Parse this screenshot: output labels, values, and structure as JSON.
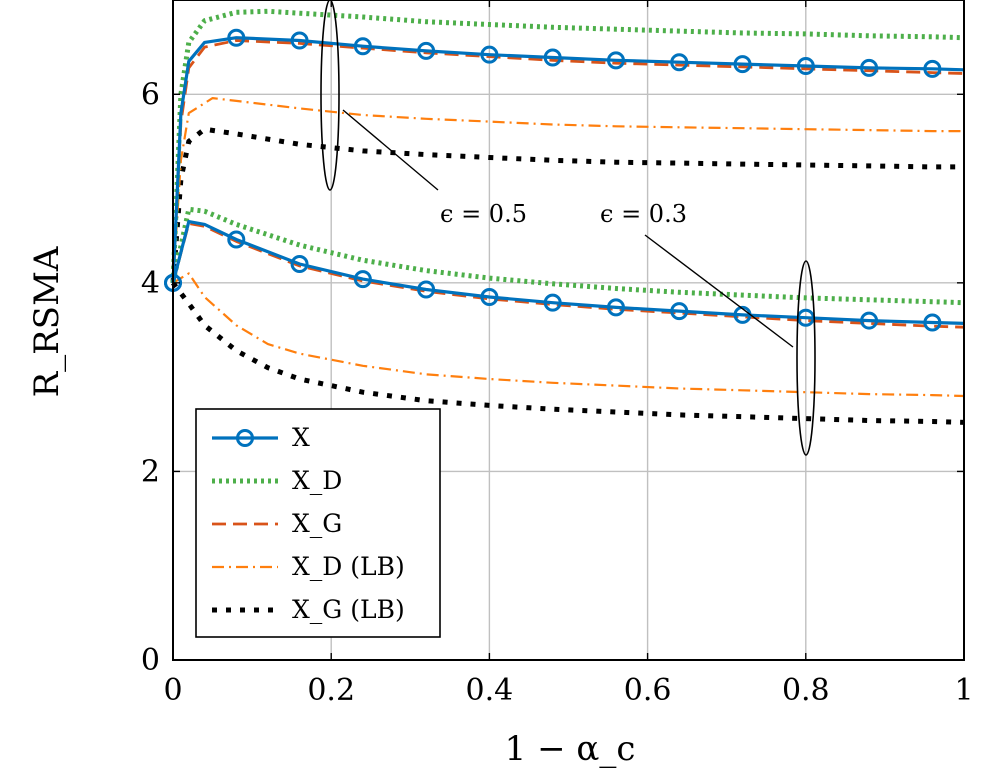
{
  "chart_data": {
    "type": "line",
    "xlabel": "1 − α_c",
    "ylabel": "R_RSMA",
    "xlim": [
      0,
      1
    ],
    "ylim": [
      0,
      7
    ],
    "x_ticks": [
      "0",
      "0.2",
      "0.4",
      "0.6",
      "0.8",
      "1"
    ],
    "y_ticks": [
      "0",
      "2",
      "4",
      "6"
    ],
    "grid": true,
    "legend_position": "bottom-left",
    "annotations": [
      {
        "text": "ϵ = 0.5",
        "group": "upper"
      },
      {
        "text": "ϵ = 0.3",
        "group": "lower"
      }
    ],
    "series": [
      {
        "name": "X",
        "group": "ϵ = 0.5",
        "style": "solid-circle",
        "color": "#0072BD",
        "x": [
          0,
          0.01,
          0.02,
          0.04,
          0.08,
          0.16,
          0.24,
          0.32,
          0.4,
          0.48,
          0.56,
          0.64,
          0.72,
          0.8,
          0.88,
          0.96,
          1.0
        ],
        "y": [
          4.0,
          5.8,
          6.35,
          6.55,
          6.6,
          6.57,
          6.51,
          6.46,
          6.42,
          6.39,
          6.36,
          6.34,
          6.32,
          6.3,
          6.28,
          6.27,
          6.26
        ]
      },
      {
        "name": "X_D",
        "group": "ϵ = 0.5",
        "style": "dotted",
        "color": "#4DAF4A",
        "x": [
          0,
          0.01,
          0.02,
          0.04,
          0.08,
          0.12,
          0.16,
          0.24,
          0.32,
          0.4,
          0.48,
          0.56,
          0.64,
          0.72,
          0.8,
          0.88,
          0.96,
          1.0
        ],
        "y": [
          4.0,
          6.0,
          6.55,
          6.78,
          6.87,
          6.88,
          6.86,
          6.82,
          6.77,
          6.74,
          6.71,
          6.69,
          6.67,
          6.65,
          6.64,
          6.62,
          6.61,
          6.6
        ]
      },
      {
        "name": "X_G",
        "group": "ϵ = 0.5",
        "style": "dashed",
        "color": "#D95319",
        "x": [
          0,
          0.01,
          0.02,
          0.04,
          0.08,
          0.16,
          0.24,
          0.32,
          0.4,
          0.48,
          0.56,
          0.64,
          0.72,
          0.8,
          0.88,
          0.96,
          1.0
        ],
        "y": [
          4.0,
          5.7,
          6.28,
          6.5,
          6.57,
          6.54,
          6.49,
          6.44,
          6.4,
          6.36,
          6.33,
          6.31,
          6.29,
          6.27,
          6.25,
          6.23,
          6.22
        ]
      },
      {
        "name": "X_D (LB)",
        "group": "ϵ = 0.5",
        "style": "dash-dot",
        "color": "#FF7F0E",
        "x": [
          0,
          0.01,
          0.02,
          0.05,
          0.08,
          0.16,
          0.24,
          0.32,
          0.4,
          0.48,
          0.56,
          0.64,
          0.72,
          0.8,
          0.88,
          0.96,
          1.0
        ],
        "y": [
          4.0,
          5.3,
          5.8,
          5.96,
          5.93,
          5.85,
          5.78,
          5.74,
          5.71,
          5.68,
          5.66,
          5.65,
          5.64,
          5.63,
          5.62,
          5.61,
          5.61
        ]
      },
      {
        "name": "X_G (LB)",
        "group": "ϵ = 0.5",
        "style": "dots",
        "color": "#000000",
        "x": [
          0,
          0.01,
          0.02,
          0.04,
          0.08,
          0.16,
          0.24,
          0.32,
          0.4,
          0.48,
          0.56,
          0.64,
          0.72,
          0.8,
          0.88,
          0.96,
          1.0
        ],
        "y": [
          4.0,
          5.1,
          5.5,
          5.63,
          5.58,
          5.47,
          5.4,
          5.36,
          5.33,
          5.3,
          5.28,
          5.27,
          5.26,
          5.25,
          5.24,
          5.23,
          5.23
        ]
      },
      {
        "name": "X",
        "group": "ϵ = 0.3",
        "style": "solid-circle",
        "color": "#0072BD",
        "x": [
          0,
          0.02,
          0.04,
          0.08,
          0.16,
          0.24,
          0.32,
          0.4,
          0.48,
          0.56,
          0.64,
          0.72,
          0.8,
          0.88,
          0.96,
          1.0
        ],
        "y": [
          4.0,
          4.65,
          4.62,
          4.46,
          4.2,
          4.04,
          3.93,
          3.85,
          3.79,
          3.74,
          3.7,
          3.66,
          3.63,
          3.6,
          3.58,
          3.57
        ]
      },
      {
        "name": "X_D",
        "group": "ϵ = 0.3",
        "style": "dotted",
        "color": "#4DAF4A",
        "x": [
          0,
          0.02,
          0.04,
          0.08,
          0.16,
          0.24,
          0.32,
          0.4,
          0.48,
          0.56,
          0.64,
          0.72,
          0.8,
          0.88,
          0.96,
          1.0
        ],
        "y": [
          4.0,
          4.78,
          4.76,
          4.62,
          4.4,
          4.24,
          4.13,
          4.05,
          3.99,
          3.94,
          3.9,
          3.87,
          3.84,
          3.82,
          3.8,
          3.79
        ]
      },
      {
        "name": "X_G",
        "group": "ϵ = 0.3",
        "style": "dashed",
        "color": "#D95319",
        "x": [
          0,
          0.02,
          0.04,
          0.08,
          0.16,
          0.24,
          0.32,
          0.4,
          0.48,
          0.56,
          0.64,
          0.72,
          0.8,
          0.88,
          0.96,
          1.0
        ],
        "y": [
          4.0,
          4.63,
          4.6,
          4.44,
          4.18,
          4.02,
          3.91,
          3.83,
          3.77,
          3.72,
          3.68,
          3.64,
          3.6,
          3.57,
          3.54,
          3.53
        ]
      },
      {
        "name": "X_D (LB)",
        "group": "ϵ = 0.3",
        "style": "dash-dot",
        "color": "#FF7F0E",
        "x": [
          0,
          0.02,
          0.04,
          0.08,
          0.12,
          0.16,
          0.24,
          0.32,
          0.4,
          0.48,
          0.56,
          0.64,
          0.72,
          0.8,
          0.88,
          0.96,
          1.0
        ],
        "y": [
          4.0,
          4.1,
          3.85,
          3.55,
          3.35,
          3.25,
          3.12,
          3.03,
          2.98,
          2.94,
          2.91,
          2.88,
          2.86,
          2.84,
          2.82,
          2.81,
          2.8
        ]
      },
      {
        "name": "X_G (LB)",
        "group": "ϵ = 0.3",
        "style": "dots",
        "color": "#000000",
        "x": [
          0,
          0.02,
          0.04,
          0.08,
          0.12,
          0.16,
          0.24,
          0.32,
          0.4,
          0.48,
          0.56,
          0.64,
          0.72,
          0.8,
          0.88,
          0.96,
          1.0
        ],
        "y": [
          4.0,
          3.78,
          3.55,
          3.28,
          3.1,
          2.98,
          2.84,
          2.75,
          2.7,
          2.66,
          2.63,
          2.6,
          2.58,
          2.56,
          2.54,
          2.53,
          2.52
        ]
      }
    ]
  }
}
